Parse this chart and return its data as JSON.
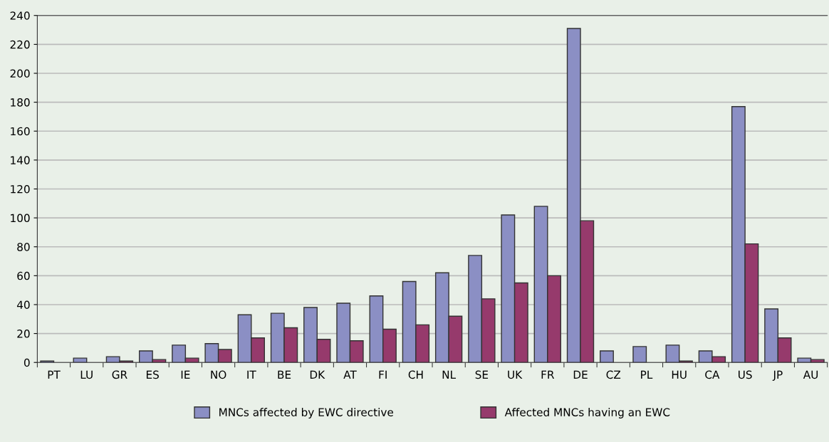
{
  "chart_data": {
    "type": "bar",
    "categories": [
      "PT",
      "LU",
      "GR",
      "ES",
      "IE",
      "NO",
      "IT",
      "BE",
      "DK",
      "AT",
      "FI",
      "CH",
      "NL",
      "SE",
      "UK",
      "FR",
      "DE",
      "CZ",
      "PL",
      "HU",
      "CA",
      "US",
      "JP",
      "AU"
    ],
    "series": [
      {
        "name": "MNCs affected by EWC directive",
        "color": "#8b8fc4",
        "values": [
          1,
          3,
          4,
          8,
          12,
          13,
          33,
          34,
          38,
          41,
          46,
          56,
          62,
          74,
          102,
          108,
          231,
          8,
          11,
          12,
          8,
          177,
          37,
          3
        ]
      },
      {
        "name": "Affected MNCs having an EWC",
        "color": "#963a6c",
        "values": [
          0,
          0,
          1,
          2,
          3,
          9,
          17,
          24,
          16,
          15,
          23,
          26,
          32,
          44,
          55,
          60,
          98,
          0,
          0,
          1,
          4,
          82,
          17,
          2
        ]
      }
    ],
    "ylim": [
      0,
      240
    ],
    "yticks": [
      0,
      20,
      40,
      60,
      80,
      100,
      120,
      140,
      160,
      180,
      200,
      220,
      240
    ],
    "grid": "y",
    "legend": "bottom"
  }
}
